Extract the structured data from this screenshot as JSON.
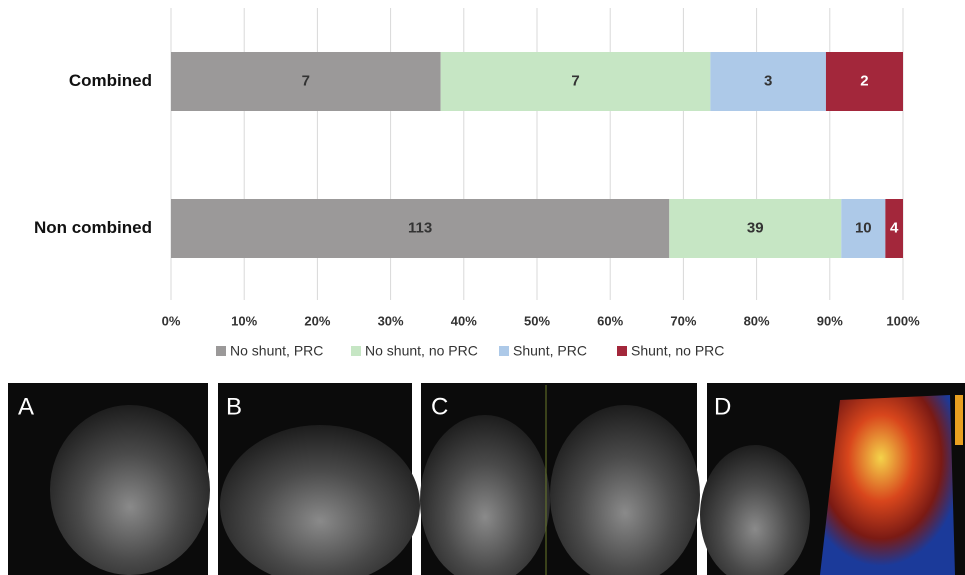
{
  "chart_data": {
    "type": "stacked-bar-100",
    "categories": [
      "Combined",
      "Non combined"
    ],
    "series": [
      {
        "name": "No shunt, PRC",
        "color": "#9b9999",
        "values": [
          7,
          113
        ]
      },
      {
        "name": "No shunt, no PRC",
        "color": "#c6e6c4",
        "values": [
          7,
          39
        ]
      },
      {
        "name": "Shunt, PRC",
        "color": "#adc9e8",
        "values": [
          3,
          10
        ]
      },
      {
        "name": "Shunt, no PRC",
        "color": "#a3273b",
        "values": [
          2,
          4
        ]
      }
    ],
    "xlim": [
      0,
      100
    ],
    "xticks": [
      {
        "value": 0,
        "label": "0%"
      },
      {
        "value": 10,
        "label": "10%"
      },
      {
        "value": 20,
        "label": "20%"
      },
      {
        "value": 30,
        "label": "30%"
      },
      {
        "value": 40,
        "label": "40%"
      },
      {
        "value": 50,
        "label": "50%"
      },
      {
        "value": 60,
        "label": "60%"
      },
      {
        "value": 70,
        "label": "70%"
      },
      {
        "value": 80,
        "label": "80%"
      },
      {
        "value": 90,
        "label": "90%"
      },
      {
        "value": 100,
        "label": "100%"
      }
    ],
    "grid": true,
    "legend": "bottom"
  },
  "image_panels": {
    "labels": [
      "A",
      "B",
      "C",
      "D"
    ]
  }
}
